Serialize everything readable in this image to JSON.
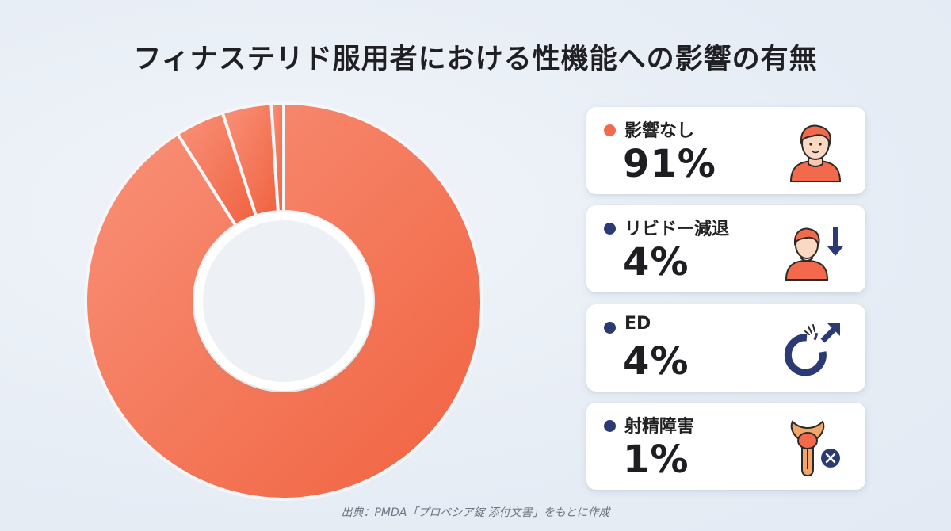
{
  "title": "フィナステリド服用者における性機能への影響の有無",
  "source": "出典：PMDA「プロペシア錠 添付文書」をもとに作成",
  "colors": {
    "accent": "#f26a4b",
    "navy": "#2b3a75"
  },
  "chart_data": {
    "type": "pie",
    "donut": true,
    "title": "フィナステリド服用者における性機能への影響の有無",
    "categories": [
      "影響なし",
      "リビドー減退",
      "ED",
      "射精障害"
    ],
    "values": [
      91,
      4,
      4,
      1
    ],
    "unit": "%",
    "legend": "right"
  },
  "cards": [
    {
      "label": "影響なし",
      "value": "91%",
      "dot_color": "#f26a4b",
      "icon": "person-icon"
    },
    {
      "label": "リビドー減退",
      "value": "4%",
      "dot_color": "#2b3a75",
      "icon": "person-down-arrow-icon"
    },
    {
      "label": "ED",
      "value": "4%",
      "dot_color": "#2b3a75",
      "icon": "broken-male-symbol-icon"
    },
    {
      "label": "射精障害",
      "value": "1%",
      "dot_color": "#2b3a75",
      "icon": "reproductive-organ-cross-icon"
    }
  ]
}
